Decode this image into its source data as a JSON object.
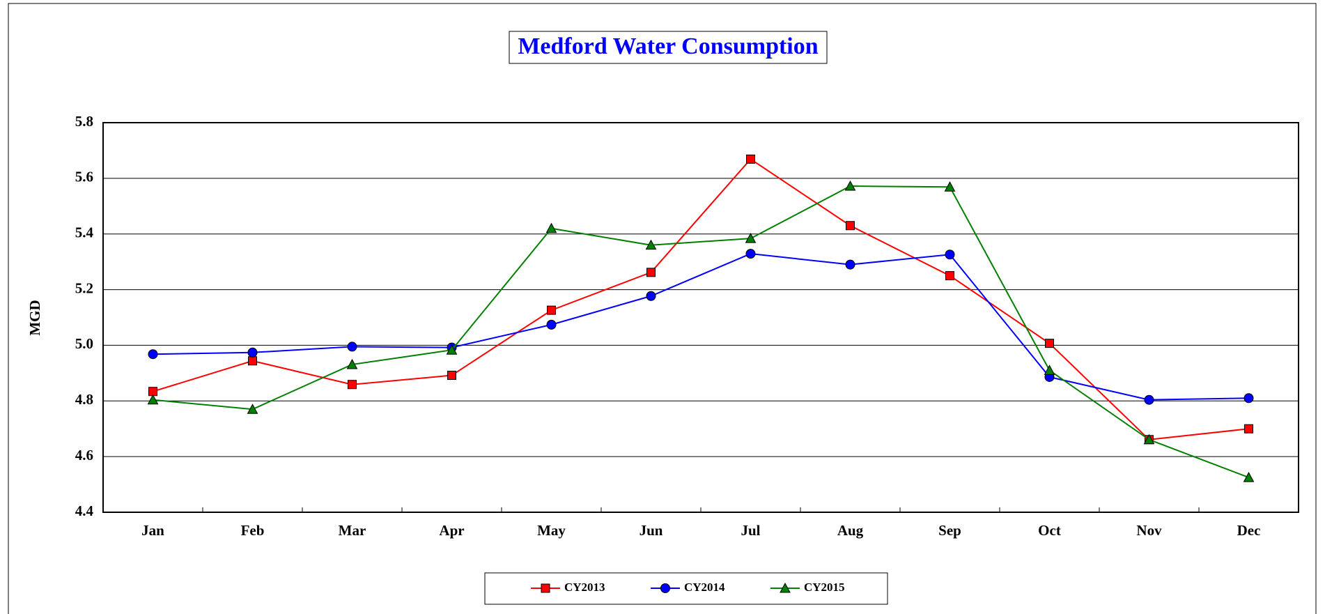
{
  "chart_data": {
    "type": "line",
    "title": "Medford Water Consumption",
    "ylabel": "MGD",
    "categories": [
      "Jan",
      "Feb",
      "Mar",
      "Apr",
      "May",
      "Jun",
      "Jul",
      "Aug",
      "Sep",
      "Oct",
      "Nov",
      "Dec"
    ],
    "series": [
      {
        "name": "CY2013",
        "color": "#ff0000",
        "marker": "square",
        "values": [
          4.834,
          4.944,
          4.859,
          4.892,
          5.126,
          5.262,
          5.669,
          5.43,
          5.25,
          5.007,
          4.661,
          4.7
        ]
      },
      {
        "name": "CY2014",
        "color": "#0000ff",
        "marker": "circle",
        "values": [
          4.968,
          4.974,
          4.995,
          4.992,
          5.074,
          5.177,
          5.329,
          5.29,
          5.326,
          4.886,
          4.804,
          4.81
        ]
      },
      {
        "name": "CY2015",
        "color": "#008000",
        "marker": "triangle",
        "values": [
          4.804,
          4.77,
          4.931,
          4.983,
          5.42,
          5.36,
          5.384,
          5.572,
          5.569,
          4.91,
          4.661,
          4.525
        ]
      }
    ],
    "ylim": [
      4.4,
      5.8
    ],
    "yticks": [
      4.4,
      4.6,
      4.8,
      {
        "value": 5,
        "label": "5.0"
      },
      5.2,
      5.4,
      5.6,
      5.8
    ],
    "grid": true,
    "legend": "bottom"
  }
}
